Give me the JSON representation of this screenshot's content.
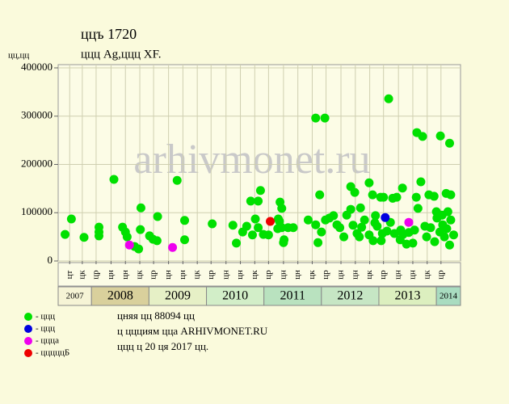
{
  "chart_data": {
    "type": "scatter",
    "title": "ццъ 1720",
    "subtitle": "ццц Ag,ццц XF.",
    "y_label": "цц,цц",
    "watermark": "arhivmonet.ru",
    "notes": [
      "цняя цц 88094 цц",
      "ц ццциям цца ARHIVMONET.RU",
      "ццц ц 20 ця 2017 цц."
    ],
    "xlim": [
      2007.42,
      2014.42
    ],
    "ylim": [
      0,
      400000
    ],
    "yticks": [
      0,
      100000,
      200000,
      300000,
      400000
    ],
    "grid": true,
    "xticks": [
      {
        "value": 2007.62,
        "label": "цт"
      },
      {
        "value": 2007.84,
        "label": "цк"
      },
      {
        "value": 2008.08,
        "label": "цр"
      },
      {
        "value": 2008.34,
        "label": "цн"
      },
      {
        "value": 2008.59,
        "label": "цн"
      },
      {
        "value": 2008.84,
        "label": "цк"
      },
      {
        "value": 2009.08,
        "label": "цр"
      },
      {
        "value": 2009.34,
        "label": "цн"
      },
      {
        "value": 2009.59,
        "label": "цн"
      },
      {
        "value": 2009.84,
        "label": "цк"
      },
      {
        "value": 2010.08,
        "label": "цр"
      },
      {
        "value": 2010.34,
        "label": "цн"
      },
      {
        "value": 2010.59,
        "label": "цн"
      },
      {
        "value": 2010.84,
        "label": "цк"
      },
      {
        "value": 2011.08,
        "label": "цр"
      },
      {
        "value": 2011.34,
        "label": "цн"
      },
      {
        "value": 2011.59,
        "label": "цн"
      },
      {
        "value": 2011.84,
        "label": "цк"
      },
      {
        "value": 2012.08,
        "label": "цр"
      },
      {
        "value": 2012.34,
        "label": "цн"
      },
      {
        "value": 2012.59,
        "label": "цн"
      },
      {
        "value": 2012.84,
        "label": "цк"
      },
      {
        "value": 2013.08,
        "label": "цр"
      },
      {
        "value": 2013.34,
        "label": "цн"
      },
      {
        "value": 2013.59,
        "label": "цн"
      },
      {
        "value": 2013.84,
        "label": "цк"
      },
      {
        "value": 2014.08,
        "label": "цр"
      }
    ],
    "years": [
      {
        "value": 2007,
        "color": "#f6f4d6"
      },
      {
        "value": 2008,
        "color": "#d9d09c"
      },
      {
        "value": 2009,
        "color": "#e6f0c6"
      },
      {
        "value": 2010,
        "color": "#d2eec8"
      },
      {
        "value": 2011,
        "color": "#b9e2bf"
      },
      {
        "value": 2012,
        "color": "#c6e6c4"
      },
      {
        "value": 2013,
        "color": "#dcefbf"
      },
      {
        "value": 2014,
        "color": "#a9dcc0"
      }
    ],
    "series": [
      {
        "name": "- ццц",
        "color": "#00e000",
        "x": [
          2007.54,
          2007.65,
          2007.87,
          2008.13,
          2008.13,
          2008.13,
          2008.39,
          2008.54,
          2008.59,
          2008.62,
          2008.75,
          2008.82,
          2008.85,
          2008.86,
          2009.01,
          2009.07,
          2009.14,
          2009.15,
          2009.49,
          2009.62,
          2009.62,
          2010.1,
          2010.46,
          2010.52,
          2010.63,
          2010.7,
          2010.77,
          2010.8,
          2010.85,
          2010.9,
          2010.94,
          2010.9,
          2010.99,
          2011.08,
          2011.24,
          2011.25,
          2011.28,
          2011.31,
          2011.34,
          2011.35,
          2011.31,
          2011.42,
          2011.51,
          2011.27,
          2011.77,
          2011.9,
          2011.94,
          2011.97,
          2012.0,
          2011.9,
          2012.06,
          2012.07,
          2012.14,
          2012.21,
          2012.27,
          2012.32,
          2012.39,
          2012.44,
          2012.51,
          2012.51,
          2012.55,
          2012.58,
          2012.62,
          2012.66,
          2012.7,
          2012.68,
          2012.75,
          2012.83,
          2012.83,
          2012.89,
          2012.9,
          2012.93,
          2012.94,
          2012.97,
          2013.03,
          2013.04,
          2013.06,
          2013.08,
          2013.14,
          2013.17,
          2013.2,
          2013.24,
          2013.27,
          2013.31,
          2013.37,
          2013.38,
          2013.41,
          2013.42,
          2013.48,
          2013.52,
          2013.59,
          2013.62,
          2013.65,
          2013.66,
          2013.68,
          2013.73,
          2013.76,
          2013.8,
          2013.83,
          2013.87,
          2013.9,
          2013.96,
          2013.97,
          2014.0,
          2014.01,
          2014.06,
          2014.07,
          2014.11,
          2014.14,
          2014.17,
          2014.2,
          2014.23,
          2014.23,
          2014.25,
          2014.25,
          2014.3,
          2014.18,
          2014.1
        ],
        "values": [
          55000,
          87000,
          49000,
          70000,
          60000,
          52000,
          169000,
          70000,
          60000,
          50000,
          30000,
          25000,
          65000,
          110000,
          52000,
          45000,
          42000,
          92000,
          167000,
          84000,
          44000,
          77000,
          74000,
          37000,
          60000,
          72000,
          124000,
          54000,
          87000,
          124000,
          146000,
          69000,
          55000,
          54000,
          67000,
          87000,
          122000,
          109000,
          38000,
          44000,
          69000,
          69000,
          69000,
          82000,
          85000,
          296000,
          38000,
          137000,
          60000,
          75000,
          296000,
          85000,
          89000,
          94000,
          75000,
          69000,
          50000,
          95000,
          107000,
          154000,
          74000,
          142000,
          57000,
          50000,
          70000,
          110000,
          85000,
          54000,
          162000,
          137000,
          42000,
          79000,
          94000,
          72000,
          132000,
          42000,
          57000,
          132000,
          62000,
          336000,
          80000,
          130000,
          57000,
          132000,
          44000,
          64000,
          151000,
          55000,
          35000,
          59000,
          37000,
          64000,
          132000,
          266000,
          109000,
          164000,
          258000,
          72000,
          50000,
          137000,
          69000,
          134000,
          40000,
          102000,
          89000,
          60000,
          259000,
          75000,
          50000,
          140000,
          102000,
          244000,
          33000,
          137000,
          85000,
          54000,
          67000,
          95000
        ]
      },
      {
        "name": "- ццц",
        "color": "#0000e0",
        "x": [
          2013.11
        ],
        "values": [
          90000
        ]
      },
      {
        "name": "- ццца",
        "color": "#ee00ee",
        "x": [
          2008.66,
          2009.41,
          2013.52
        ],
        "values": [
          33000,
          28000,
          80000
        ]
      },
      {
        "name": "- цццццБ",
        "color": "#ee0000",
        "x": [
          2011.11
        ],
        "values": [
          82000
        ]
      }
    ]
  }
}
